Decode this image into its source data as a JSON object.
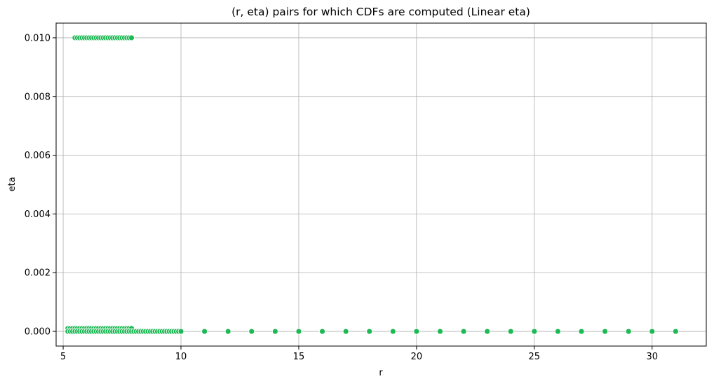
{
  "chart_data": {
    "type": "scatter",
    "title": "(r, eta) pairs for which CDFs are computed (Linear eta)",
    "xlabel": "r",
    "ylabel": "eta",
    "xlim": [
      4.7,
      32.3
    ],
    "ylim": [
      -0.0005,
      0.0105
    ],
    "x_ticks": [
      5,
      10,
      15,
      20,
      25,
      30
    ],
    "x_tick_labels": [
      "5",
      "10",
      "15",
      "20",
      "25",
      "30"
    ],
    "y_ticks": [
      0,
      0.002,
      0.004,
      0.006,
      0.008,
      0.01
    ],
    "y_tick_labels": [
      "0.000",
      "0.002",
      "0.004",
      "0.006",
      "0.008",
      "0.010"
    ],
    "grid": true,
    "marker_color": "#1db954",
    "series": [
      {
        "points": [
          [
            5.5,
            0.01
          ],
          [
            5.6,
            0.01
          ],
          [
            5.7,
            0.01
          ],
          [
            5.8,
            0.01
          ],
          [
            5.9,
            0.01
          ],
          [
            6.0,
            0.01
          ],
          [
            6.1,
            0.01
          ],
          [
            6.2,
            0.01
          ],
          [
            6.3,
            0.01
          ],
          [
            6.4,
            0.01
          ],
          [
            6.5,
            0.01
          ],
          [
            6.6,
            0.01
          ],
          [
            6.7,
            0.01
          ],
          [
            6.8,
            0.01
          ],
          [
            6.9,
            0.01
          ],
          [
            7.0,
            0.01
          ],
          [
            7.1,
            0.01
          ],
          [
            7.2,
            0.01
          ],
          [
            7.3,
            0.01
          ],
          [
            7.4,
            0.01
          ],
          [
            7.5,
            0.01
          ],
          [
            7.6,
            0.01
          ],
          [
            7.7,
            0.01
          ],
          [
            7.8,
            0.01
          ],
          [
            7.9,
            0.01
          ],
          [
            5.2,
            0.0001
          ],
          [
            5.3,
            0.0001
          ],
          [
            5.4,
            0.0001
          ],
          [
            5.5,
            0.0001
          ],
          [
            5.6,
            0.0001
          ],
          [
            5.7,
            0.0001
          ],
          [
            5.8,
            0.0001
          ],
          [
            5.9,
            0.0001
          ],
          [
            6.0,
            0.0001
          ],
          [
            6.1,
            0.0001
          ],
          [
            6.2,
            0.0001
          ],
          [
            6.3,
            0.0001
          ],
          [
            6.4,
            0.0001
          ],
          [
            6.5,
            0.0001
          ],
          [
            6.6,
            0.0001
          ],
          [
            6.7,
            0.0001
          ],
          [
            6.8,
            0.0001
          ],
          [
            6.9,
            0.0001
          ],
          [
            7.0,
            0.0001
          ],
          [
            7.1,
            0.0001
          ],
          [
            7.2,
            0.0001
          ],
          [
            7.3,
            0.0001
          ],
          [
            7.4,
            0.0001
          ],
          [
            7.5,
            0.0001
          ],
          [
            7.6,
            0.0001
          ],
          [
            7.7,
            0.0001
          ],
          [
            7.8,
            0.0001
          ],
          [
            7.9,
            0.0001
          ],
          [
            5.2,
            0
          ],
          [
            5.3,
            0
          ],
          [
            5.4,
            0
          ],
          [
            5.5,
            0
          ],
          [
            5.6,
            0
          ],
          [
            5.7,
            0
          ],
          [
            5.8,
            0
          ],
          [
            5.9,
            0
          ],
          [
            6.0,
            0
          ],
          [
            6.1,
            0
          ],
          [
            6.2,
            0
          ],
          [
            6.3,
            0
          ],
          [
            6.4,
            0
          ],
          [
            6.5,
            0
          ],
          [
            6.6,
            0
          ],
          [
            6.7,
            0
          ],
          [
            6.8,
            0
          ],
          [
            6.9,
            0
          ],
          [
            7.0,
            0
          ],
          [
            7.1,
            0
          ],
          [
            7.2,
            0
          ],
          [
            7.3,
            0
          ],
          [
            7.4,
            0
          ],
          [
            7.5,
            0
          ],
          [
            7.6,
            0
          ],
          [
            7.7,
            0
          ],
          [
            7.8,
            0
          ],
          [
            7.9,
            0
          ],
          [
            8.0,
            0
          ],
          [
            8.1,
            0
          ],
          [
            8.2,
            0
          ],
          [
            8.3,
            0
          ],
          [
            8.4,
            0
          ],
          [
            8.5,
            0
          ],
          [
            8.6,
            0
          ],
          [
            8.7,
            0
          ],
          [
            8.8,
            0
          ],
          [
            8.9,
            0
          ],
          [
            9.0,
            0
          ],
          [
            9.1,
            0
          ],
          [
            9.2,
            0
          ],
          [
            9.3,
            0
          ],
          [
            9.4,
            0
          ],
          [
            9.5,
            0
          ],
          [
            9.6,
            0
          ],
          [
            9.7,
            0
          ],
          [
            9.8,
            0
          ],
          [
            9.9,
            0
          ],
          [
            10.0,
            0
          ],
          [
            11,
            0
          ],
          [
            12,
            0
          ],
          [
            13,
            0
          ],
          [
            14,
            0
          ],
          [
            15,
            0
          ],
          [
            16,
            0
          ],
          [
            17,
            0
          ],
          [
            18,
            0
          ],
          [
            19,
            0
          ],
          [
            20,
            0
          ],
          [
            21,
            0
          ],
          [
            22,
            0
          ],
          [
            23,
            0
          ],
          [
            24,
            0
          ],
          [
            25,
            0
          ],
          [
            26,
            0
          ],
          [
            27,
            0
          ],
          [
            28,
            0
          ],
          [
            29,
            0
          ],
          [
            30,
            0
          ],
          [
            31,
            0
          ]
        ]
      }
    ]
  }
}
